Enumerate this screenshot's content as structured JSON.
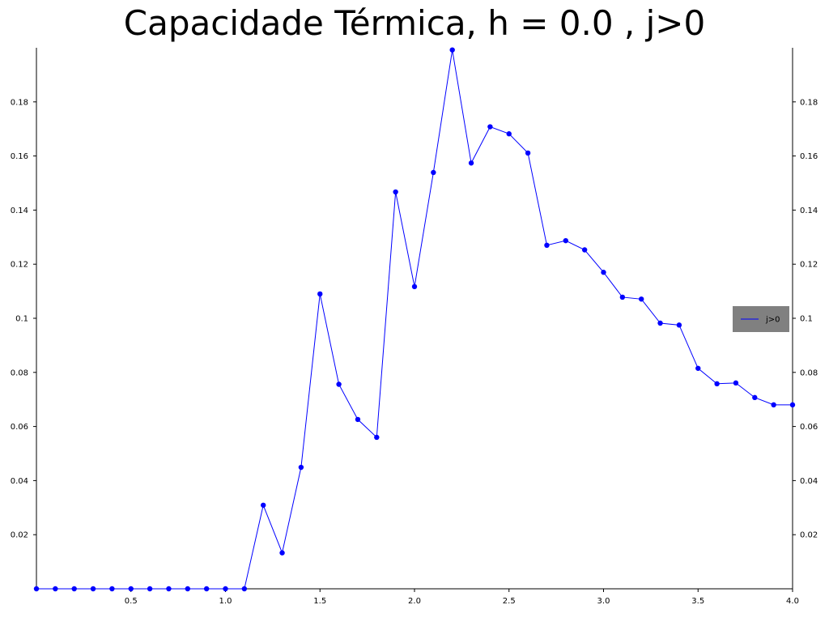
{
  "chart_data": {
    "type": "line",
    "title": "Capacidade Térmica, h = 0.0 , j>0",
    "xlabel": "",
    "ylabel": "",
    "xlim": [
      0.0,
      4.0
    ],
    "ylim": [
      0.0,
      0.2
    ],
    "x_ticks": [
      "0.5",
      "1.0",
      "1.5",
      "2.0",
      "2.5",
      "3.0",
      "3.5",
      "4.0"
    ],
    "y_ticks": [
      "0.02",
      "0.04",
      "0.06",
      "0.08",
      "0.1",
      "0.12",
      "0.14",
      "0.16",
      "0.18"
    ],
    "grid": false,
    "legend_position": "right",
    "series": [
      {
        "name": "j>0",
        "color": "#0000ff",
        "x": [
          0.0,
          0.1,
          0.2,
          0.3,
          0.4,
          0.5,
          0.6,
          0.7,
          0.8,
          0.9,
          1.0,
          1.1,
          1.2,
          1.3,
          1.4,
          1.5,
          1.6,
          1.7,
          1.8,
          1.9,
          2.0,
          2.1,
          2.2,
          2.3,
          2.4,
          2.5,
          2.6,
          2.7,
          2.8,
          2.9,
          3.0,
          3.1,
          3.2,
          3.3,
          3.4,
          3.5,
          3.6,
          3.7,
          3.8,
          3.9,
          4.0
        ],
        "y": [
          0.0,
          0.0,
          0.0,
          0.0,
          0.0,
          0.0,
          0.0,
          0.0,
          0.0,
          0.0,
          0.0,
          0.0,
          0.0309,
          0.0133,
          0.0449,
          0.109,
          0.0756,
          0.0626,
          0.056,
          0.1467,
          0.1117,
          0.1539,
          0.1992,
          0.1574,
          0.1708,
          0.1682,
          0.1611,
          0.127,
          0.1287,
          0.1253,
          0.117,
          0.1078,
          0.1071,
          0.0982,
          0.0975,
          0.0815,
          0.0758,
          0.0761,
          0.0707,
          0.068,
          0.068
        ]
      }
    ]
  }
}
